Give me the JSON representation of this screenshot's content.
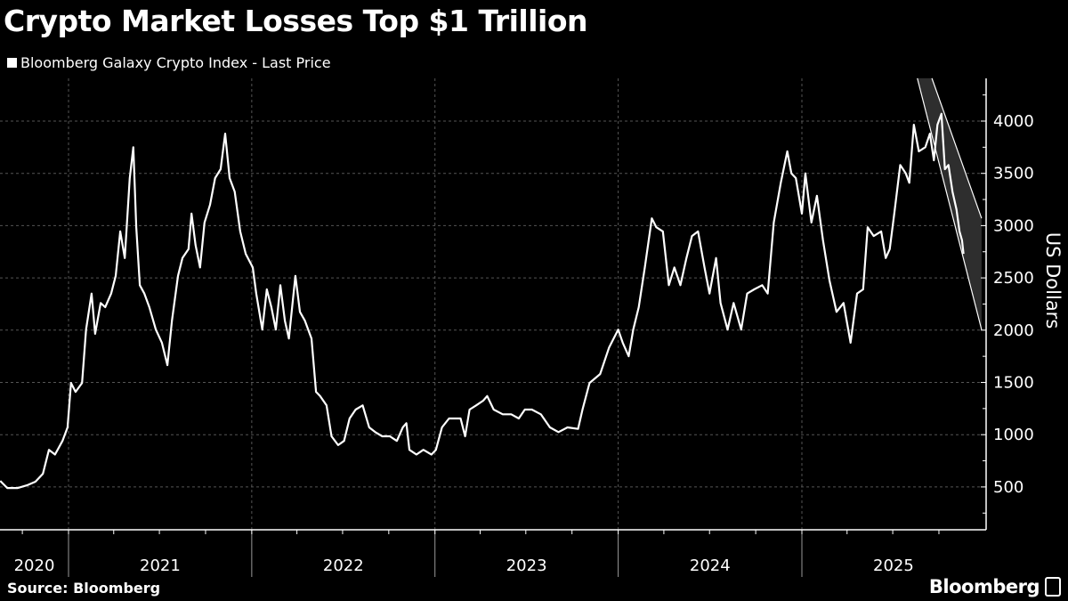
{
  "chart_data": {
    "type": "line",
    "title": "Crypto Market Losses Top $1 Trillion",
    "legend": [
      "Bloomberg Galaxy Crypto Index - Last Price"
    ],
    "legend_placement": "top-left",
    "ylabel": "US Dollars",
    "xlabel": "",
    "y_axis_side": "right",
    "ylim": [
      90,
      4420
    ],
    "yticks": [
      500,
      1000,
      1500,
      2000,
      2500,
      3000,
      3500,
      4000
    ],
    "xlim": [
      "2020-08-18",
      "2025-12-31"
    ],
    "xtick_labels": [
      "2020",
      "2021",
      "2022",
      "2023",
      "2024",
      "2025"
    ],
    "grid": true,
    "colors": {
      "background": "#000000",
      "line": "#ffffff",
      "channel_fill": "#2e2e2e",
      "grid": "#555555"
    },
    "series": [
      {
        "name": "Bloomberg Galaxy Crypto Index - Last Price",
        "points": [
          [
            "2020-08-18",
            558
          ],
          [
            "2020-09-01",
            490
          ],
          [
            "2020-09-22",
            490
          ],
          [
            "2020-10-10",
            515
          ],
          [
            "2020-10-27",
            550
          ],
          [
            "2020-11-11",
            626
          ],
          [
            "2020-11-23",
            855
          ],
          [
            "2020-12-05",
            810
          ],
          [
            "2020-12-20",
            940
          ],
          [
            "2020-12-30",
            1070
          ],
          [
            "2021-01-06",
            1495
          ],
          [
            "2021-01-15",
            1410
          ],
          [
            "2021-01-28",
            1495
          ],
          [
            "2021-02-05",
            2005
          ],
          [
            "2021-02-16",
            2350
          ],
          [
            "2021-02-23",
            1965
          ],
          [
            "2021-03-06",
            2260
          ],
          [
            "2021-03-15",
            2220
          ],
          [
            "2021-03-27",
            2350
          ],
          [
            "2021-04-05",
            2520
          ],
          [
            "2021-04-14",
            2945
          ],
          [
            "2021-04-23",
            2690
          ],
          [
            "2021-05-03",
            3455
          ],
          [
            "2021-05-10",
            3750
          ],
          [
            "2021-05-16",
            2985
          ],
          [
            "2021-05-23",
            2430
          ],
          [
            "2021-06-01",
            2350
          ],
          [
            "2021-06-11",
            2220
          ],
          [
            "2021-06-24",
            2005
          ],
          [
            "2021-07-06",
            1880
          ],
          [
            "2021-07-17",
            1665
          ],
          [
            "2021-07-26",
            2090
          ],
          [
            "2021-08-07",
            2520
          ],
          [
            "2021-08-16",
            2690
          ],
          [
            "2021-08-28",
            2775
          ],
          [
            "2021-09-03",
            3115
          ],
          [
            "2021-09-11",
            2815
          ],
          [
            "2021-09-20",
            2600
          ],
          [
            "2021-09-29",
            3030
          ],
          [
            "2021-10-10",
            3200
          ],
          [
            "2021-10-20",
            3455
          ],
          [
            "2021-10-31",
            3540
          ],
          [
            "2021-11-09",
            3880
          ],
          [
            "2021-11-18",
            3455
          ],
          [
            "2021-11-28",
            3325
          ],
          [
            "2021-12-09",
            2945
          ],
          [
            "2021-12-20",
            2730
          ],
          [
            "2022-01-03",
            2600
          ],
          [
            "2022-01-10",
            2350
          ],
          [
            "2022-01-22",
            2005
          ],
          [
            "2022-01-31",
            2390
          ],
          [
            "2022-02-09",
            2220
          ],
          [
            "2022-02-18",
            2005
          ],
          [
            "2022-02-27",
            2430
          ],
          [
            "2022-03-08",
            2090
          ],
          [
            "2022-03-16",
            1920
          ],
          [
            "2022-03-29",
            2520
          ],
          [
            "2022-04-07",
            2175
          ],
          [
            "2022-04-17",
            2090
          ],
          [
            "2022-04-30",
            1920
          ],
          [
            "2022-05-09",
            1410
          ],
          [
            "2022-05-17",
            1370
          ],
          [
            "2022-05-30",
            1280
          ],
          [
            "2022-06-09",
            985
          ],
          [
            "2022-06-22",
            900
          ],
          [
            "2022-07-04",
            940
          ],
          [
            "2022-07-15",
            1155
          ],
          [
            "2022-07-27",
            1240
          ],
          [
            "2022-08-10",
            1280
          ],
          [
            "2022-08-23",
            1070
          ],
          [
            "2022-09-04",
            1025
          ],
          [
            "2022-09-18",
            985
          ],
          [
            "2022-10-03",
            985
          ],
          [
            "2022-10-17",
            940
          ],
          [
            "2022-10-29",
            1070
          ],
          [
            "2022-11-05",
            1110
          ],
          [
            "2022-11-11",
            855
          ],
          [
            "2022-11-25",
            810
          ],
          [
            "2022-12-09",
            855
          ],
          [
            "2022-12-25",
            810
          ],
          [
            "2023-01-03",
            855
          ],
          [
            "2023-01-15",
            1070
          ],
          [
            "2023-01-29",
            1155
          ],
          [
            "2023-02-11",
            1155
          ],
          [
            "2023-02-21",
            1155
          ],
          [
            "2023-03-02",
            985
          ],
          [
            "2023-03-11",
            1240
          ],
          [
            "2023-03-24",
            1280
          ],
          [
            "2023-04-07",
            1325
          ],
          [
            "2023-04-15",
            1370
          ],
          [
            "2023-04-28",
            1240
          ],
          [
            "2023-05-16",
            1195
          ],
          [
            "2023-06-02",
            1195
          ],
          [
            "2023-06-17",
            1155
          ],
          [
            "2023-06-29",
            1240
          ],
          [
            "2023-07-13",
            1240
          ],
          [
            "2023-07-31",
            1195
          ],
          [
            "2023-08-18",
            1070
          ],
          [
            "2023-09-04",
            1025
          ],
          [
            "2023-09-22",
            1070
          ],
          [
            "2023-10-13",
            1055
          ],
          [
            "2023-10-22",
            1240
          ],
          [
            "2023-11-05",
            1495
          ],
          [
            "2023-11-26",
            1580
          ],
          [
            "2023-12-14",
            1835
          ],
          [
            "2024-01-01",
            2005
          ],
          [
            "2024-01-10",
            1880
          ],
          [
            "2024-01-22",
            1750
          ],
          [
            "2024-01-31",
            2005
          ],
          [
            "2024-02-11",
            2220
          ],
          [
            "2024-02-23",
            2600
          ],
          [
            "2024-03-08",
            3070
          ],
          [
            "2024-03-17",
            2985
          ],
          [
            "2024-03-30",
            2945
          ],
          [
            "2024-04-11",
            2430
          ],
          [
            "2024-04-22",
            2600
          ],
          [
            "2024-05-04",
            2430
          ],
          [
            "2024-05-16",
            2690
          ],
          [
            "2024-05-27",
            2900
          ],
          [
            "2024-06-08",
            2945
          ],
          [
            "2024-06-21",
            2600
          ],
          [
            "2024-07-01",
            2350
          ],
          [
            "2024-07-14",
            2690
          ],
          [
            "2024-07-23",
            2260
          ],
          [
            "2024-08-06",
            2005
          ],
          [
            "2024-08-18",
            2260
          ],
          [
            "2024-09-02",
            2005
          ],
          [
            "2024-09-14",
            2350
          ],
          [
            "2024-09-28",
            2390
          ],
          [
            "2024-10-14",
            2430
          ],
          [
            "2024-10-25",
            2350
          ],
          [
            "2024-11-06",
            3030
          ],
          [
            "2024-11-20",
            3410
          ],
          [
            "2024-12-03",
            3710
          ],
          [
            "2024-12-11",
            3500
          ],
          [
            "2024-12-20",
            3455
          ],
          [
            "2025-01-01",
            3115
          ],
          [
            "2025-01-08",
            3500
          ],
          [
            "2025-01-20",
            3030
          ],
          [
            "2025-01-31",
            3285
          ],
          [
            "2025-02-12",
            2860
          ],
          [
            "2025-02-25",
            2475
          ],
          [
            "2025-03-11",
            2175
          ],
          [
            "2025-03-25",
            2260
          ],
          [
            "2025-04-08",
            1880
          ],
          [
            "2025-04-21",
            2350
          ],
          [
            "2025-05-03",
            2390
          ],
          [
            "2025-05-12",
            2985
          ],
          [
            "2025-05-24",
            2900
          ],
          [
            "2025-06-08",
            2945
          ],
          [
            "2025-06-17",
            2690
          ],
          [
            "2025-06-25",
            2775
          ],
          [
            "2025-07-04",
            3115
          ],
          [
            "2025-07-16",
            3580
          ],
          [
            "2025-07-27",
            3500
          ],
          [
            "2025-08-03",
            3410
          ],
          [
            "2025-08-12",
            3965
          ],
          [
            "2025-08-22",
            3710
          ],
          [
            "2025-09-04",
            3750
          ],
          [
            "2025-09-13",
            3880
          ],
          [
            "2025-09-21",
            3625
          ],
          [
            "2025-09-28",
            3965
          ],
          [
            "2025-10-06",
            4070
          ],
          [
            "2025-10-13",
            3540
          ],
          [
            "2025-10-20",
            3580
          ],
          [
            "2025-10-28",
            3325
          ],
          [
            "2025-11-05",
            3155
          ],
          [
            "2025-11-11",
            2945
          ],
          [
            "2025-11-16",
            2860
          ],
          [
            "2025-11-19",
            2730
          ]
        ]
      }
    ],
    "annotations": [
      {
        "type": "downward-channel",
        "upper_line": [
          [
            "2025-09-17",
            4410
          ],
          [
            "2025-12-25",
            3070
          ]
        ],
        "lower_line": [
          [
            "2025-08-19",
            4410
          ],
          [
            "2025-12-25",
            2005
          ]
        ]
      }
    ]
  },
  "source": "Source: Bloomberg",
  "brand": "Bloomberg"
}
